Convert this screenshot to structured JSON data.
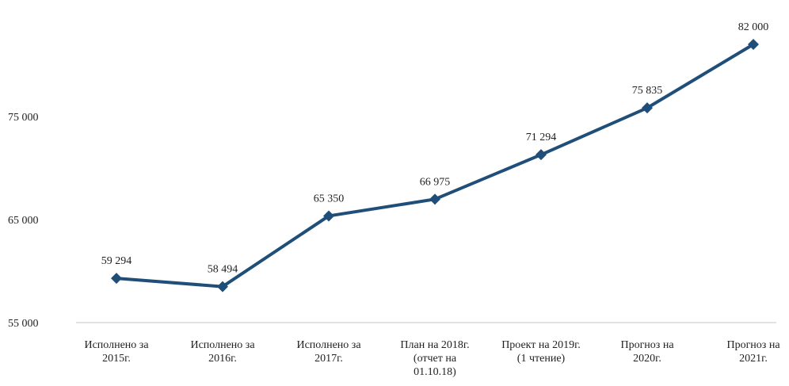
{
  "chart_data": {
    "type": "line",
    "title": "",
    "xlabel": "",
    "ylabel": "",
    "categories": [
      [
        "Исполнено за",
        "2015г."
      ],
      [
        "Исполнено за",
        "2016г."
      ],
      [
        "Исполнено за",
        "2017г."
      ],
      [
        "План на 2018г.",
        "(отчет на",
        "01.10.18)"
      ],
      [
        "Проект на 2019г.",
        "(1 чтение)"
      ],
      [
        "Прогноз на",
        "2020г."
      ],
      [
        "Прогноз на",
        "2021г."
      ]
    ],
    "series": [
      {
        "values": [
          59294,
          58494,
          65350,
          66975,
          71294,
          75835,
          82000
        ],
        "labels": [
          "59 294",
          "58 494",
          "65 350",
          "66 975",
          "71 294",
          "75 835",
          "82 000"
        ]
      }
    ],
    "yticks": [
      55000,
      65000,
      75000
    ],
    "ytick_labels": [
      "55 000",
      "65 000",
      "75 000"
    ],
    "ylim": [
      55000,
      84000
    ],
    "grid": false,
    "legend": "none",
    "colors": {
      "series": "#1f4e79",
      "axis": "#d9d9d9",
      "text": "#222222"
    }
  }
}
